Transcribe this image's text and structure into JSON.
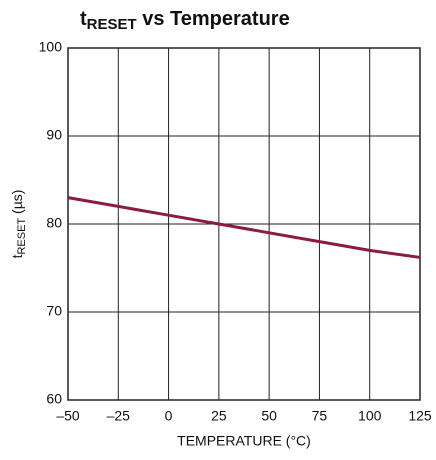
{
  "chart_data": {
    "type": "line",
    "title": [
      "t",
      "RESET",
      " vs Temperature"
    ],
    "xlabel": "TEMPERATURE (°C)",
    "ylabel": [
      "t",
      "RESET",
      " (µs)"
    ],
    "x": [
      -50,
      -25,
      0,
      25,
      50,
      75,
      100,
      125
    ],
    "series": [
      {
        "color": "#8c1c3c",
        "values": [
          83,
          82,
          81,
          80,
          79,
          78,
          77,
          76.2
        ]
      }
    ],
    "xlim": [
      -50,
      125
    ],
    "xticks": [
      {
        "value": -50,
        "label": "–50"
      },
      {
        "value": -25,
        "label": "–25"
      },
      0,
      25,
      50,
      75,
      100,
      125
    ],
    "ylim": [
      60,
      100
    ],
    "yticks": [
      60,
      70,
      80,
      90,
      100
    ],
    "grid": true
  }
}
